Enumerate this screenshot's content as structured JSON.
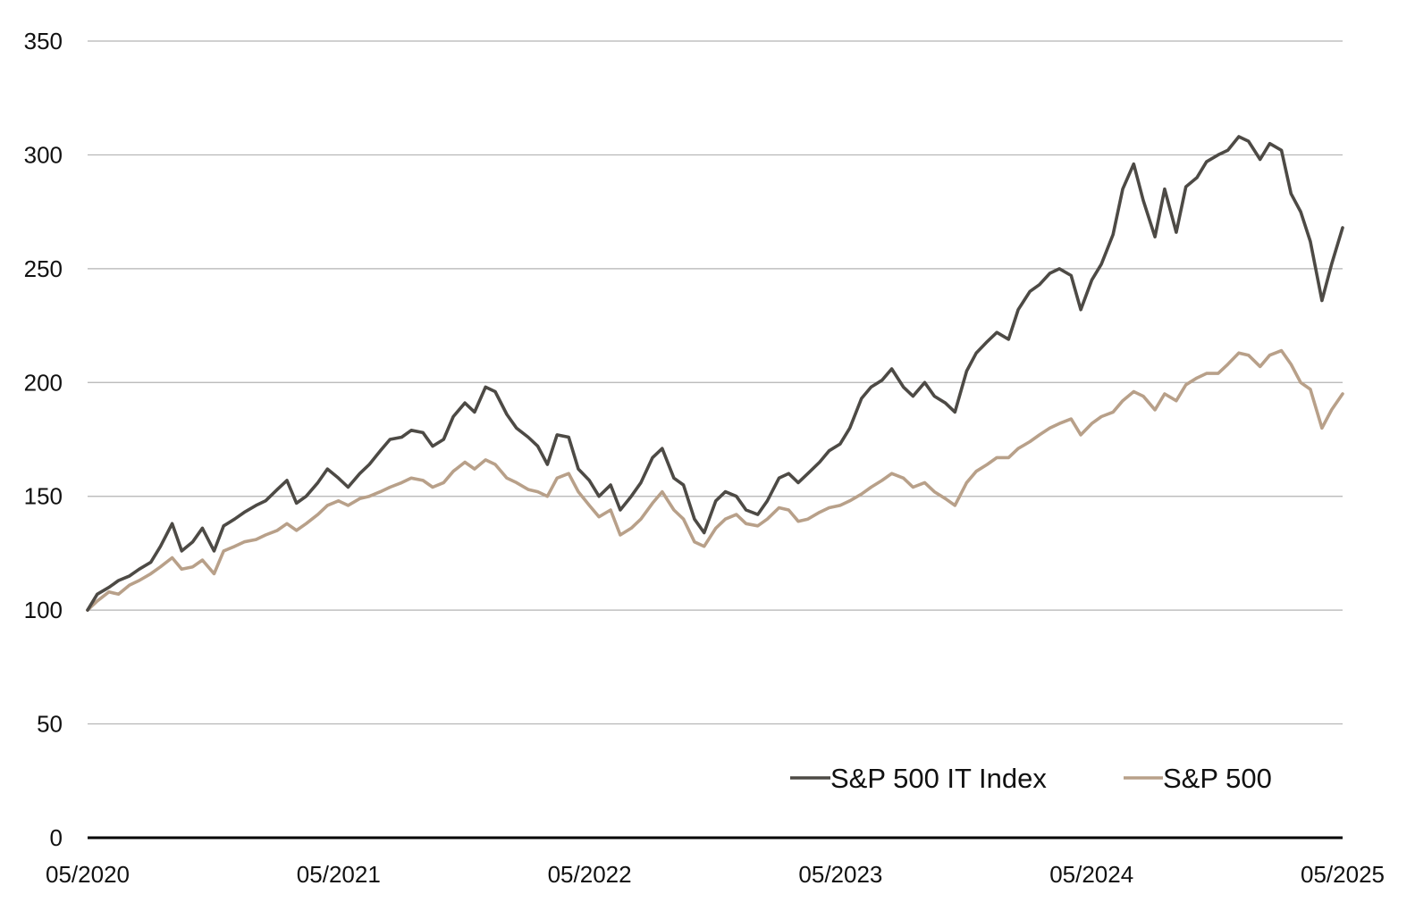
{
  "chart_data": {
    "type": "line",
    "title": "",
    "xlabel": "",
    "ylabel": "",
    "ylim": [
      0,
      350
    ],
    "y_ticks": [
      0,
      50,
      100,
      150,
      200,
      250,
      300,
      350
    ],
    "x_range": [
      "2020-05-01",
      "2025-05-01"
    ],
    "x_ticks": [
      "05/2020",
      "05/2021",
      "05/2022",
      "05/2023",
      "05/2024",
      "05/2025"
    ],
    "grid": "horizontal",
    "legend_position": "bottom-right",
    "colors": {
      "it": "#4d4a45",
      "sp500": "#b8a089",
      "grid": "#b3b3b3",
      "axis": "#000000"
    },
    "series": [
      {
        "name": "S&P 500 IT Index",
        "color": "#4d4a45",
        "points": [
          [
            "2020-05-01",
            100
          ],
          [
            "2020-05-15",
            107
          ],
          [
            "2020-06-01",
            110
          ],
          [
            "2020-06-15",
            113
          ],
          [
            "2020-07-01",
            115
          ],
          [
            "2020-07-15",
            118
          ],
          [
            "2020-08-01",
            121
          ],
          [
            "2020-08-15",
            128
          ],
          [
            "2020-09-01",
            138
          ],
          [
            "2020-09-15",
            126
          ],
          [
            "2020-10-01",
            130
          ],
          [
            "2020-10-15",
            136
          ],
          [
            "2020-11-01",
            126
          ],
          [
            "2020-11-15",
            137
          ],
          [
            "2020-12-01",
            140
          ],
          [
            "2020-12-15",
            143
          ],
          [
            "2021-01-01",
            146
          ],
          [
            "2021-01-15",
            148
          ],
          [
            "2021-02-01",
            153
          ],
          [
            "2021-02-15",
            157
          ],
          [
            "2021-03-01",
            147
          ],
          [
            "2021-03-15",
            150
          ],
          [
            "2021-04-01",
            156
          ],
          [
            "2021-04-15",
            162
          ],
          [
            "2021-05-01",
            158
          ],
          [
            "2021-05-15",
            154
          ],
          [
            "2021-06-01",
            160
          ],
          [
            "2021-06-15",
            164
          ],
          [
            "2021-07-01",
            170
          ],
          [
            "2021-07-15",
            175
          ],
          [
            "2021-08-01",
            176
          ],
          [
            "2021-08-15",
            179
          ],
          [
            "2021-09-01",
            178
          ],
          [
            "2021-09-15",
            172
          ],
          [
            "2021-10-01",
            175
          ],
          [
            "2021-10-15",
            185
          ],
          [
            "2021-11-01",
            191
          ],
          [
            "2021-11-15",
            187
          ],
          [
            "2021-12-01",
            198
          ],
          [
            "2021-12-15",
            196
          ],
          [
            "2022-01-01",
            186
          ],
          [
            "2022-01-15",
            180
          ],
          [
            "2022-02-01",
            176
          ],
          [
            "2022-02-15",
            172
          ],
          [
            "2022-03-01",
            164
          ],
          [
            "2022-03-15",
            177
          ],
          [
            "2022-04-01",
            176
          ],
          [
            "2022-04-15",
            162
          ],
          [
            "2022-05-01",
            157
          ],
          [
            "2022-05-15",
            150
          ],
          [
            "2022-06-01",
            155
          ],
          [
            "2022-06-15",
            144
          ],
          [
            "2022-07-01",
            150
          ],
          [
            "2022-07-15",
            156
          ],
          [
            "2022-08-01",
            167
          ],
          [
            "2022-08-15",
            171
          ],
          [
            "2022-09-01",
            158
          ],
          [
            "2022-09-15",
            155
          ],
          [
            "2022-10-01",
            140
          ],
          [
            "2022-10-15",
            134
          ],
          [
            "2022-11-01",
            148
          ],
          [
            "2022-11-15",
            152
          ],
          [
            "2022-12-01",
            150
          ],
          [
            "2022-12-15",
            144
          ],
          [
            "2023-01-01",
            142
          ],
          [
            "2023-01-15",
            148
          ],
          [
            "2023-02-01",
            158
          ],
          [
            "2023-02-15",
            160
          ],
          [
            "2023-03-01",
            156
          ],
          [
            "2023-03-15",
            160
          ],
          [
            "2023-04-01",
            165
          ],
          [
            "2023-04-15",
            170
          ],
          [
            "2023-05-01",
            173
          ],
          [
            "2023-05-15",
            180
          ],
          [
            "2023-06-01",
            193
          ],
          [
            "2023-06-15",
            198
          ],
          [
            "2023-07-01",
            201
          ],
          [
            "2023-07-15",
            206
          ],
          [
            "2023-08-01",
            198
          ],
          [
            "2023-08-15",
            194
          ],
          [
            "2023-09-01",
            200
          ],
          [
            "2023-09-15",
            194
          ],
          [
            "2023-10-01",
            191
          ],
          [
            "2023-10-15",
            187
          ],
          [
            "2023-11-01",
            205
          ],
          [
            "2023-11-15",
            213
          ],
          [
            "2023-12-01",
            218
          ],
          [
            "2023-12-15",
            222
          ],
          [
            "2024-01-01",
            219
          ],
          [
            "2024-01-15",
            232
          ],
          [
            "2024-02-01",
            240
          ],
          [
            "2024-02-15",
            243
          ],
          [
            "2024-03-01",
            248
          ],
          [
            "2024-03-15",
            250
          ],
          [
            "2024-04-01",
            247
          ],
          [
            "2024-04-15",
            232
          ],
          [
            "2024-05-01",
            245
          ],
          [
            "2024-05-15",
            252
          ],
          [
            "2024-06-01",
            265
          ],
          [
            "2024-06-15",
            285
          ],
          [
            "2024-07-01",
            296
          ],
          [
            "2024-07-15",
            280
          ],
          [
            "2024-08-01",
            264
          ],
          [
            "2024-08-15",
            285
          ],
          [
            "2024-09-01",
            266
          ],
          [
            "2024-09-15",
            286
          ],
          [
            "2024-10-01",
            290
          ],
          [
            "2024-10-15",
            297
          ],
          [
            "2024-11-01",
            300
          ],
          [
            "2024-11-15",
            302
          ],
          [
            "2024-12-01",
            308
          ],
          [
            "2024-12-15",
            306
          ],
          [
            "2025-01-01",
            298
          ],
          [
            "2025-01-15",
            305
          ],
          [
            "2025-02-01",
            302
          ],
          [
            "2025-02-15",
            283
          ],
          [
            "2025-03-01",
            275
          ],
          [
            "2025-03-15",
            262
          ],
          [
            "2025-04-01",
            236
          ],
          [
            "2025-04-15",
            252
          ],
          [
            "2025-05-01",
            268
          ]
        ]
      },
      {
        "name": "S&P 500",
        "color": "#b8a089",
        "points": [
          [
            "2020-05-01",
            100
          ],
          [
            "2020-05-15",
            104
          ],
          [
            "2020-06-01",
            108
          ],
          [
            "2020-06-15",
            107
          ],
          [
            "2020-07-01",
            111
          ],
          [
            "2020-07-15",
            113
          ],
          [
            "2020-08-01",
            116
          ],
          [
            "2020-08-15",
            119
          ],
          [
            "2020-09-01",
            123
          ],
          [
            "2020-09-15",
            118
          ],
          [
            "2020-10-01",
            119
          ],
          [
            "2020-10-15",
            122
          ],
          [
            "2020-11-01",
            116
          ],
          [
            "2020-11-15",
            126
          ],
          [
            "2020-12-01",
            128
          ],
          [
            "2020-12-15",
            130
          ],
          [
            "2021-01-01",
            131
          ],
          [
            "2021-01-15",
            133
          ],
          [
            "2021-02-01",
            135
          ],
          [
            "2021-02-15",
            138
          ],
          [
            "2021-03-01",
            135
          ],
          [
            "2021-03-15",
            138
          ],
          [
            "2021-04-01",
            142
          ],
          [
            "2021-04-15",
            146
          ],
          [
            "2021-05-01",
            148
          ],
          [
            "2021-05-15",
            146
          ],
          [
            "2021-06-01",
            149
          ],
          [
            "2021-06-15",
            150
          ],
          [
            "2021-07-01",
            152
          ],
          [
            "2021-07-15",
            154
          ],
          [
            "2021-08-01",
            156
          ],
          [
            "2021-08-15",
            158
          ],
          [
            "2021-09-01",
            157
          ],
          [
            "2021-09-15",
            154
          ],
          [
            "2021-10-01",
            156
          ],
          [
            "2021-10-15",
            161
          ],
          [
            "2021-11-01",
            165
          ],
          [
            "2021-11-15",
            162
          ],
          [
            "2021-12-01",
            166
          ],
          [
            "2021-12-15",
            164
          ],
          [
            "2022-01-01",
            158
          ],
          [
            "2022-01-15",
            156
          ],
          [
            "2022-02-01",
            153
          ],
          [
            "2022-02-15",
            152
          ],
          [
            "2022-03-01",
            150
          ],
          [
            "2022-03-15",
            158
          ],
          [
            "2022-04-01",
            160
          ],
          [
            "2022-04-15",
            152
          ],
          [
            "2022-05-01",
            146
          ],
          [
            "2022-05-15",
            141
          ],
          [
            "2022-06-01",
            144
          ],
          [
            "2022-06-15",
            133
          ],
          [
            "2022-07-01",
            136
          ],
          [
            "2022-07-15",
            140
          ],
          [
            "2022-08-01",
            147
          ],
          [
            "2022-08-15",
            152
          ],
          [
            "2022-09-01",
            144
          ],
          [
            "2022-09-15",
            140
          ],
          [
            "2022-10-01",
            130
          ],
          [
            "2022-10-15",
            128
          ],
          [
            "2022-11-01",
            136
          ],
          [
            "2022-11-15",
            140
          ],
          [
            "2022-12-01",
            142
          ],
          [
            "2022-12-15",
            138
          ],
          [
            "2023-01-01",
            137
          ],
          [
            "2023-01-15",
            140
          ],
          [
            "2023-02-01",
            145
          ],
          [
            "2023-02-15",
            144
          ],
          [
            "2023-03-01",
            139
          ],
          [
            "2023-03-15",
            140
          ],
          [
            "2023-04-01",
            143
          ],
          [
            "2023-04-15",
            145
          ],
          [
            "2023-05-01",
            146
          ],
          [
            "2023-05-15",
            148
          ],
          [
            "2023-06-01",
            151
          ],
          [
            "2023-06-15",
            154
          ],
          [
            "2023-07-01",
            157
          ],
          [
            "2023-07-15",
            160
          ],
          [
            "2023-08-01",
            158
          ],
          [
            "2023-08-15",
            154
          ],
          [
            "2023-09-01",
            156
          ],
          [
            "2023-09-15",
            152
          ],
          [
            "2023-10-01",
            149
          ],
          [
            "2023-10-15",
            146
          ],
          [
            "2023-11-01",
            156
          ],
          [
            "2023-11-15",
            161
          ],
          [
            "2023-12-01",
            164
          ],
          [
            "2023-12-15",
            167
          ],
          [
            "2024-01-01",
            167
          ],
          [
            "2024-01-15",
            171
          ],
          [
            "2024-02-01",
            174
          ],
          [
            "2024-02-15",
            177
          ],
          [
            "2024-03-01",
            180
          ],
          [
            "2024-03-15",
            182
          ],
          [
            "2024-04-01",
            184
          ],
          [
            "2024-04-15",
            177
          ],
          [
            "2024-05-01",
            182
          ],
          [
            "2024-05-15",
            185
          ],
          [
            "2024-06-01",
            187
          ],
          [
            "2024-06-15",
            192
          ],
          [
            "2024-07-01",
            196
          ],
          [
            "2024-07-15",
            194
          ],
          [
            "2024-08-01",
            188
          ],
          [
            "2024-08-15",
            195
          ],
          [
            "2024-09-01",
            192
          ],
          [
            "2024-09-15",
            199
          ],
          [
            "2024-10-01",
            202
          ],
          [
            "2024-10-15",
            204
          ],
          [
            "2024-11-01",
            204
          ],
          [
            "2024-11-15",
            208
          ],
          [
            "2024-12-01",
            213
          ],
          [
            "2024-12-15",
            212
          ],
          [
            "2025-01-01",
            207
          ],
          [
            "2025-01-15",
            212
          ],
          [
            "2025-02-01",
            214
          ],
          [
            "2025-02-15",
            208
          ],
          [
            "2025-03-01",
            200
          ],
          [
            "2025-03-15",
            197
          ],
          [
            "2025-04-01",
            180
          ],
          [
            "2025-04-15",
            188
          ],
          [
            "2025-05-01",
            195
          ]
        ]
      }
    ]
  }
}
